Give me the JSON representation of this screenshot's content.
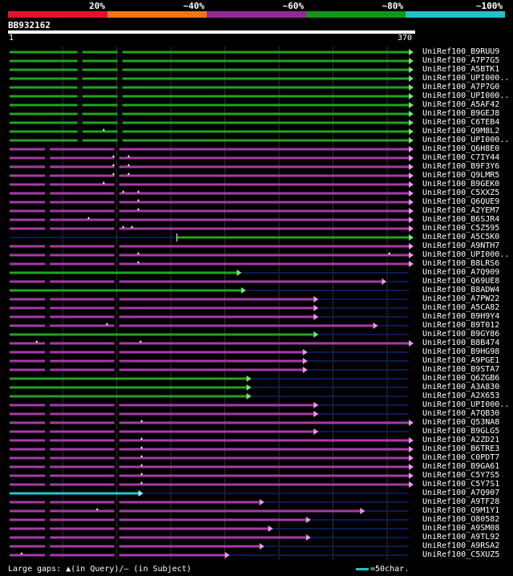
{
  "legend": [
    {
      "label": "20%",
      "color": "#e8102c"
    },
    {
      "label": "~40%",
      "color": "#e87818"
    },
    {
      "label": "~60%",
      "color": "#962896"
    },
    {
      "label": "~80%",
      "color": "#149614"
    },
    {
      "label": "~100%",
      "color": "#23c0c8"
    }
  ],
  "query": {
    "id": "BB932162",
    "start": "1",
    "end": "370",
    "length": 370
  },
  "colors": {
    "green": "#22a322",
    "purple": "#a63ba6",
    "cyan": "#27c3d0",
    "navy": "#0c1a52",
    "gray": "#333333",
    "tri_green": "#7fe07f",
    "tri_purple": "#e89be8",
    "tri_cyan": "#a0f0f8",
    "marker": "#ffffcc"
  },
  "hits": [
    {
      "label": "UniRef100_B9RUU9",
      "color": "green",
      "start": 1,
      "end": 370,
      "gaps": [
        66,
        103
      ],
      "marks": []
    },
    {
      "label": "UniRef100_A7P7G5",
      "color": "green",
      "start": 1,
      "end": 370,
      "gaps": [
        66,
        103
      ],
      "marks": []
    },
    {
      "label": "UniRef100_A5BTK1",
      "color": "green",
      "start": 1,
      "end": 370,
      "gaps": [
        66,
        103
      ],
      "marks": []
    },
    {
      "label": "UniRef100_UPI000..",
      "color": "green",
      "start": 1,
      "end": 370,
      "gaps": [
        66,
        103
      ],
      "marks": []
    },
    {
      "label": "UniRef100_A7P7G0",
      "color": "green",
      "start": 1,
      "end": 370,
      "gaps": [
        66,
        103
      ],
      "marks": []
    },
    {
      "label": "UniRef100_UPI000..",
      "color": "green",
      "start": 1,
      "end": 370,
      "gaps": [
        66,
        103
      ],
      "marks": []
    },
    {
      "label": "UniRef100_A5AF42",
      "color": "green",
      "start": 1,
      "end": 370,
      "gaps": [
        66,
        103
      ],
      "marks": []
    },
    {
      "label": "UniRef100_B9GEJ8",
      "color": "green",
      "start": 1,
      "end": 370,
      "gaps": [
        66,
        103
      ],
      "marks": []
    },
    {
      "label": "UniRef100_C6TEB4",
      "color": "green",
      "start": 1,
      "end": 370,
      "gaps": [
        66,
        103
      ],
      "marks": []
    },
    {
      "label": "UniRef100_Q9M8L2",
      "color": "green",
      "start": 1,
      "end": 370,
      "gaps": [
        66,
        103
      ],
      "marks": [
        88
      ]
    },
    {
      "label": "UniRef100_UPI000..",
      "color": "green",
      "start": 1,
      "end": 370,
      "gaps": [
        66,
        103
      ],
      "marks": []
    },
    {
      "label": "UniRef100_Q6H8E0",
      "color": "purple",
      "start": 1,
      "end": 370,
      "gaps": [
        36,
        100
      ],
      "marks": []
    },
    {
      "label": "UniRef100_C7IY44",
      "color": "purple",
      "start": 1,
      "end": 370,
      "gaps": [
        36,
        100
      ],
      "marks": [
        97,
        111
      ]
    },
    {
      "label": "UniRef100_B9F3Y6",
      "color": "purple",
      "start": 1,
      "end": 370,
      "gaps": [
        36,
        100
      ],
      "marks": [
        97,
        111
      ]
    },
    {
      "label": "UniRef100_Q9LMR5",
      "color": "purple",
      "start": 1,
      "end": 370,
      "gaps": [
        36,
        100
      ],
      "marks": [
        97,
        111
      ]
    },
    {
      "label": "UniRef100_B9GEK0",
      "color": "purple",
      "start": 1,
      "end": 370,
      "gaps": [
        36,
        100
      ],
      "marks": [
        88
      ]
    },
    {
      "label": "UniRef100_C5XXZ5",
      "color": "purple",
      "start": 1,
      "end": 370,
      "gaps": [
        36,
        100
      ],
      "marks": [
        106,
        120
      ]
    },
    {
      "label": "UniRef100_Q6QUE9",
      "color": "purple",
      "start": 1,
      "end": 370,
      "gaps": [
        36,
        100
      ],
      "marks": [
        120
      ]
    },
    {
      "label": "UniRef100_A2YEM7",
      "color": "purple",
      "start": 1,
      "end": 370,
      "gaps": [
        36,
        100
      ],
      "marks": [
        120
      ]
    },
    {
      "label": "UniRef100_B6SJR4",
      "color": "purple",
      "start": 1,
      "end": 370,
      "gaps": [
        36,
        100
      ],
      "marks": [
        74
      ]
    },
    {
      "label": "UniRef100_C5Z595",
      "color": "purple",
      "start": 1,
      "end": 370,
      "gaps": [
        36,
        100
      ],
      "marks": [
        106,
        114
      ]
    },
    {
      "label": "UniRef100_A5C5K0",
      "color": "green",
      "start": 156,
      "end": 370,
      "gaps": [],
      "marks": []
    },
    {
      "label": "UniRef100_A9NTH7",
      "color": "purple",
      "start": 1,
      "end": 370,
      "gaps": [
        36,
        100
      ],
      "marks": []
    },
    {
      "label": "UniRef100_UPI000..",
      "color": "purple",
      "start": 1,
      "end": 370,
      "gaps": [
        36,
        100
      ],
      "marks": [
        120,
        352
      ]
    },
    {
      "label": "UniRef100_B8LRS6",
      "color": "purple",
      "start": 1,
      "end": 370,
      "gaps": [
        36,
        100
      ],
      "marks": [
        120
      ]
    },
    {
      "label": "UniRef100_A7Q909",
      "color": "green",
      "start": 1,
      "end": 211,
      "gaps": [],
      "marks": []
    },
    {
      "label": "UniRef100_Q69UE8",
      "color": "purple",
      "start": 1,
      "end": 345,
      "gaps": [
        36,
        100
      ],
      "marks": []
    },
    {
      "label": "UniRef100_B8ADW4",
      "color": "green",
      "start": 1,
      "end": 215,
      "gaps": [],
      "marks": []
    },
    {
      "label": "UniRef100_A7PW22",
      "color": "purple",
      "start": 1,
      "end": 282,
      "gaps": [
        36,
        100
      ],
      "marks": []
    },
    {
      "label": "UniRef100_A5CA82",
      "color": "purple",
      "start": 1,
      "end": 282,
      "gaps": [
        36,
        100
      ],
      "marks": []
    },
    {
      "label": "UniRef100_B9H9Y4",
      "color": "purple",
      "start": 1,
      "end": 282,
      "gaps": [
        36,
        100
      ],
      "marks": []
    },
    {
      "label": "UniRef100_B9T012",
      "color": "purple",
      "start": 1,
      "end": 337,
      "gaps": [
        36,
        100
      ],
      "marks": [
        91
      ]
    },
    {
      "label": "UniRef100_B9GY86",
      "color": "green",
      "start": 1,
      "end": 282,
      "gaps": [],
      "marks": []
    },
    {
      "label": "UniRef100_B8B474",
      "color": "purple",
      "start": 1,
      "end": 370,
      "gaps": [
        36,
        100
      ],
      "marks": [
        26,
        122
      ]
    },
    {
      "label": "UniRef100_B9HG98",
      "color": "purple",
      "start": 1,
      "end": 272,
      "gaps": [
        36,
        100
      ],
      "marks": []
    },
    {
      "label": "UniRef100_A9PGE1",
      "color": "purple",
      "start": 1,
      "end": 272,
      "gaps": [
        36,
        100
      ],
      "marks": []
    },
    {
      "label": "UniRef100_B9STA7",
      "color": "purple",
      "start": 1,
      "end": 272,
      "gaps": [
        36,
        100
      ],
      "marks": []
    },
    {
      "label": "UniRef100_Q6ZGB6",
      "color": "green",
      "start": 1,
      "end": 220,
      "gaps": [],
      "marks": []
    },
    {
      "label": "UniRef100_A3A830",
      "color": "green",
      "start": 1,
      "end": 220,
      "gaps": [],
      "marks": []
    },
    {
      "label": "UniRef100_A2X653",
      "color": "green",
      "start": 1,
      "end": 220,
      "gaps": [],
      "marks": []
    },
    {
      "label": "UniRef100_UPI000..",
      "color": "purple",
      "start": 1,
      "end": 282,
      "gaps": [
        36,
        100
      ],
      "marks": []
    },
    {
      "label": "UniRef100_A7QB30",
      "color": "purple",
      "start": 1,
      "end": 282,
      "gaps": [
        36,
        100
      ],
      "marks": []
    },
    {
      "label": "UniRef100_Q53NA8",
      "color": "purple",
      "start": 1,
      "end": 370,
      "gaps": [
        36,
        100
      ],
      "marks": [
        123
      ]
    },
    {
      "label": "UniRef100_B9GLG5",
      "color": "purple",
      "start": 1,
      "end": 282,
      "gaps": [
        36,
        100
      ],
      "marks": []
    },
    {
      "label": "UniRef100_A2ZD21",
      "color": "purple",
      "start": 1,
      "end": 370,
      "gaps": [
        36,
        100
      ],
      "marks": [
        123
      ]
    },
    {
      "label": "UniRef100_B6TRE3",
      "color": "purple",
      "start": 1,
      "end": 370,
      "gaps": [
        36,
        100
      ],
      "marks": [
        123
      ]
    },
    {
      "label": "UniRef100_C0PDT7",
      "color": "purple",
      "start": 1,
      "end": 370,
      "gaps": [
        36,
        100
      ],
      "marks": [
        123
      ]
    },
    {
      "label": "UniRef100_B9GA61",
      "color": "purple",
      "start": 1,
      "end": 370,
      "gaps": [
        36,
        100
      ],
      "marks": [
        123
      ]
    },
    {
      "label": "UniRef100_C5Y7S5",
      "color": "purple",
      "start": 1,
      "end": 370,
      "gaps": [
        36,
        100
      ],
      "marks": [
        123
      ]
    },
    {
      "label": "UniRef100_C5Y7S1",
      "color": "purple",
      "start": 1,
      "end": 370,
      "gaps": [
        36,
        100
      ],
      "marks": [
        123
      ]
    },
    {
      "label": "UniRef100_A7Q907",
      "color": "cyan",
      "start": 1,
      "end": 120,
      "gaps": [],
      "marks": []
    },
    {
      "label": "UniRef100_A9TF28",
      "color": "purple",
      "start": 1,
      "end": 232,
      "gaps": [
        36,
        100
      ],
      "marks": []
    },
    {
      "label": "UniRef100_Q9M1Y1",
      "color": "purple",
      "start": 1,
      "end": 325,
      "gaps": [
        36,
        100
      ],
      "marks": [
        82
      ]
    },
    {
      "label": "UniRef100_O80582",
      "color": "purple",
      "start": 1,
      "end": 275,
      "gaps": [
        36,
        100
      ],
      "marks": []
    },
    {
      "label": "UniRef100_A9SM08",
      "color": "purple",
      "start": 1,
      "end": 240,
      "gaps": [
        36,
        100
      ],
      "marks": []
    },
    {
      "label": "UniRef100_A9TL92",
      "color": "purple",
      "start": 1,
      "end": 275,
      "gaps": [
        36,
        100
      ],
      "marks": []
    },
    {
      "label": "UniRef100_A9RSA2",
      "color": "purple",
      "start": 1,
      "end": 232,
      "gaps": [
        36,
        100
      ],
      "marks": []
    },
    {
      "label": "UniRef100_C5XUZ5",
      "color": "purple",
      "start": 1,
      "end": 200,
      "gaps": [
        36,
        100
      ],
      "marks": [
        12
      ]
    }
  ],
  "footer": {
    "large_gaps": "Large gaps: ▲(in Query)/– (in Subject)",
    "scale": "=50char."
  }
}
